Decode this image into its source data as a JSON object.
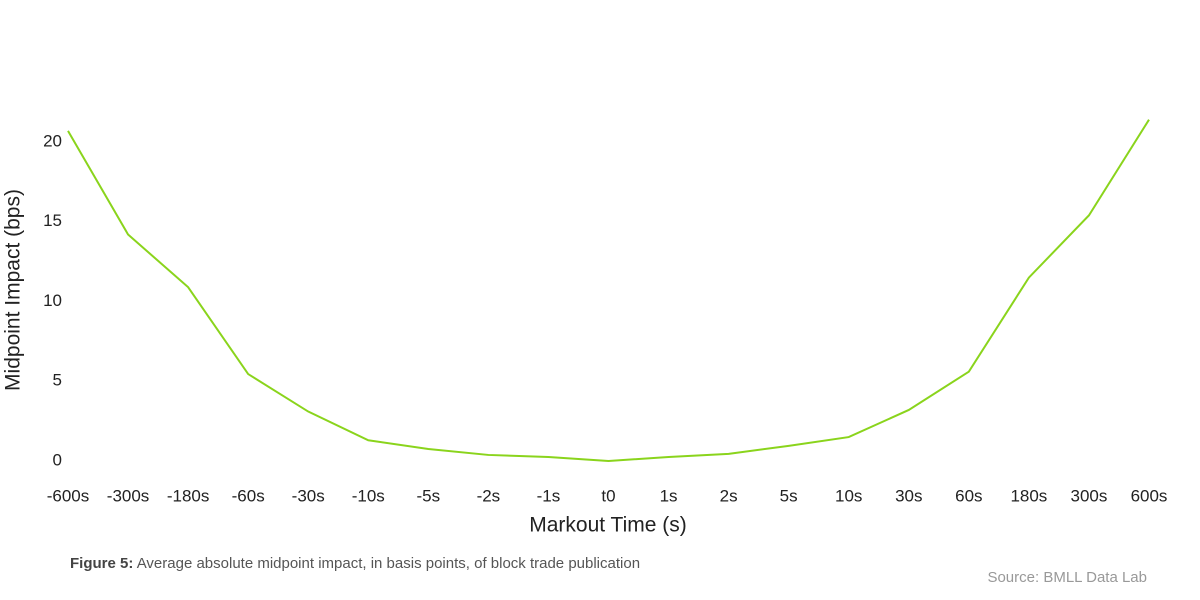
{
  "chart_data": {
    "type": "line",
    "x_label": "Markout Time (s)",
    "y_label": "Midpoint Impact (bps)",
    "caption_label": "Figure 5:",
    "caption_text": "Average absolute midpoint impact, in basis points, of block trade publication",
    "source": "Source: BMLL Data Lab",
    "categories": [
      "-600s",
      "-300s",
      "-180s",
      "-60s",
      "-30s",
      "-10s",
      "-5s",
      "-2s",
      "-1s",
      "t0",
      "1s",
      "2s",
      "5s",
      "10s",
      "30s",
      "60s",
      "180s",
      "300s",
      "600s"
    ],
    "series": [
      {
        "name": "Midpoint Impact",
        "color": "#8ad41c",
        "values": [
          20.7,
          14.2,
          10.9,
          5.45,
          3.1,
          1.3,
          0.75,
          0.38,
          0.25,
          0,
          0.25,
          0.45,
          0.95,
          1.5,
          3.2,
          5.6,
          11.5,
          15.4,
          21.4
        ]
      }
    ],
    "ylim": [
      0,
      22
    ],
    "yticks": [
      0,
      5,
      10,
      15,
      20
    ],
    "grid": false
  }
}
